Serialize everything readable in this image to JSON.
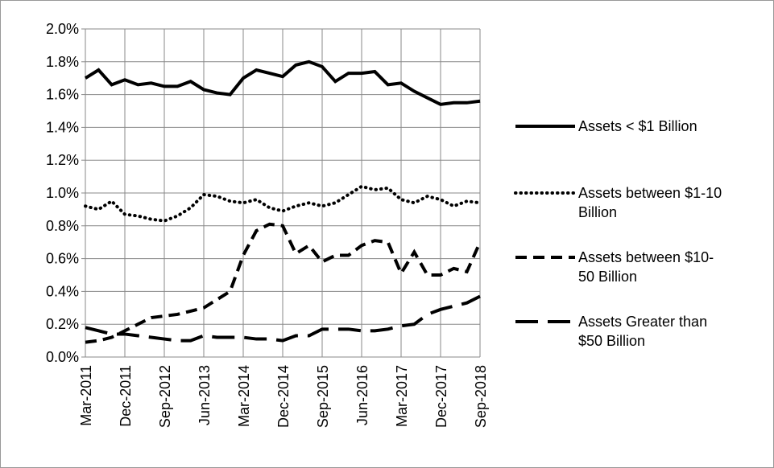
{
  "chart_data": {
    "type": "line",
    "categories": [
      "Mar-2011",
      null,
      null,
      "Dec-2011",
      null,
      null,
      "Sep-2012",
      null,
      null,
      "Jun-2013",
      null,
      null,
      "Mar-2014",
      null,
      null,
      "Dec-2014",
      null,
      null,
      "Sep-2015",
      null,
      null,
      "Jun-2016",
      null,
      null,
      "Mar-2017",
      null,
      null,
      "Dec-2017",
      null,
      null,
      "Sep-2018"
    ],
    "series": [
      {
        "name": "Assets < $1 Billion",
        "color": "#000000",
        "line_style": "solid",
        "values": [
          1.7,
          1.75,
          1.66,
          1.69,
          1.66,
          1.67,
          1.65,
          1.65,
          1.68,
          1.63,
          1.61,
          1.6,
          1.7,
          1.75,
          1.73,
          1.71,
          1.78,
          1.8,
          1.77,
          1.68,
          1.73,
          1.73,
          1.74,
          1.66,
          1.67,
          1.62,
          1.58,
          1.54,
          1.55,
          1.55,
          1.56
        ]
      },
      {
        "name": "Assets between $1-10 Billion",
        "color": "#000000",
        "line_style": "dotted",
        "values": [
          0.92,
          0.9,
          0.95,
          0.87,
          0.86,
          0.84,
          0.83,
          0.86,
          0.91,
          0.99,
          0.98,
          0.95,
          0.94,
          0.96,
          0.91,
          0.89,
          0.92,
          0.94,
          0.92,
          0.94,
          0.99,
          1.04,
          1.02,
          1.03,
          0.96,
          0.94,
          0.98,
          0.96,
          0.92,
          0.95,
          0.94
        ]
      },
      {
        "name": "Assets between $10-50 Billion",
        "color": "#000000",
        "line_style": "dashed",
        "values": [
          0.09,
          0.1,
          0.12,
          0.16,
          0.2,
          0.24,
          0.25,
          0.26,
          0.28,
          0.3,
          0.35,
          0.4,
          0.62,
          0.77,
          0.81,
          0.8,
          0.63,
          0.68,
          0.58,
          0.62,
          0.62,
          0.68,
          0.71,
          0.7,
          0.51,
          0.64,
          0.5,
          0.5,
          0.54,
          0.52,
          0.7
        ]
      },
      {
        "name": "Assets Greater than $50 Billion",
        "color": "#000000",
        "line_style": "long-dash",
        "values": [
          0.18,
          0.16,
          0.14,
          0.14,
          0.13,
          0.12,
          0.11,
          0.1,
          0.1,
          0.13,
          0.12,
          0.12,
          0.12,
          0.11,
          0.11,
          0.1,
          0.13,
          0.13,
          0.17,
          0.17,
          0.17,
          0.16,
          0.16,
          0.17,
          0.19,
          0.2,
          0.26,
          0.29,
          0.31,
          0.33,
          0.37
        ]
      }
    ],
    "ylim": [
      0,
      2.0
    ],
    "yticks": [
      {
        "value": 0,
        "label": "0.0%"
      },
      {
        "value": 0.2,
        "label": "0.2%"
      },
      {
        "value": 0.4,
        "label": "0.4%"
      },
      {
        "value": 0.6,
        "label": "0.6%"
      },
      {
        "value": 0.8,
        "label": "0.8%"
      },
      {
        "value": 1.0,
        "label": "1.0%"
      },
      {
        "value": 1.2,
        "label": "1.2%"
      },
      {
        "value": 1.4,
        "label": "1.4%"
      },
      {
        "value": 1.6,
        "label": "1.6%"
      },
      {
        "value": 1.8,
        "label": "1.8%"
      },
      {
        "value": 2.0,
        "label": "2.0%"
      }
    ],
    "grid": true,
    "legend": "right"
  }
}
